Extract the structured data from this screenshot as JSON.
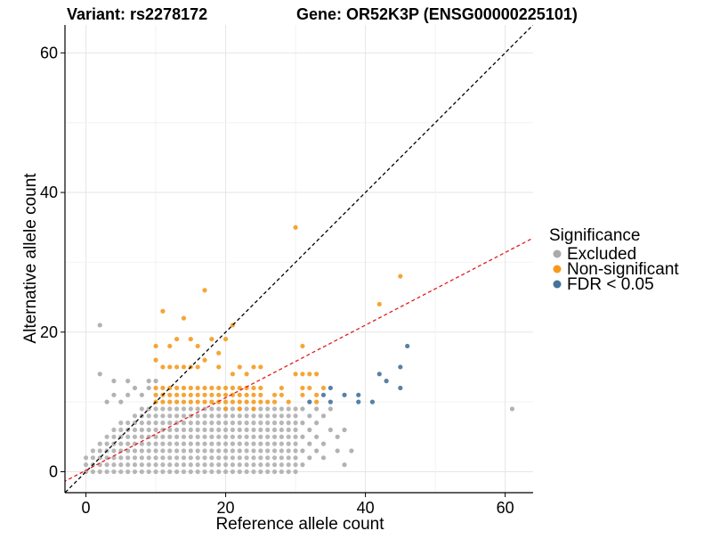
{
  "chart_data": {
    "type": "scatter",
    "title_left": "Variant: rs2278172",
    "title_right": "Gene: OR52K3P (ENSG00000225101)",
    "xlabel": "Reference allele count",
    "ylabel": "Alternative allele count",
    "xlim": [
      -3,
      64
    ],
    "ylim": [
      -3,
      64
    ],
    "x_ticks": [
      0,
      20,
      40,
      60
    ],
    "y_ticks": [
      0,
      20,
      40,
      60
    ],
    "grid": true,
    "legend_placement": "right",
    "legend": {
      "title": "Significance",
      "entries": [
        {
          "label": "Excluded",
          "color": "#aaaaaa"
        },
        {
          "label": "Non-significant",
          "color": "#f49b1f"
        },
        {
          "label": "FDR < 0.05",
          "color": "#44729c"
        }
      ]
    },
    "reference_lines": [
      {
        "name": "y = x",
        "slope": 1,
        "intercept": 0,
        "color": "#000000",
        "dash": "dashed"
      },
      {
        "name": "fit",
        "slope": 0.52,
        "intercept": 0.2,
        "color": "#e31a1c",
        "dash": "dashed"
      }
    ],
    "excluded_grid": {
      "x_max": 30,
      "y_max": 9
    },
    "series": [
      {
        "name": "Excluded",
        "color": "#aaaaaa",
        "points": [
          [
            2,
            21
          ],
          [
            2,
            14
          ],
          [
            4,
            13
          ],
          [
            6,
            13
          ],
          [
            7,
            12
          ],
          [
            9,
            13
          ],
          [
            9,
            12
          ],
          [
            10,
            13
          ],
          [
            8,
            11
          ],
          [
            6,
            11
          ],
          [
            5,
            10
          ],
          [
            3,
            10
          ],
          [
            4,
            11
          ],
          [
            31,
            9
          ],
          [
            33,
            9
          ],
          [
            35,
            9
          ],
          [
            32,
            8
          ],
          [
            34,
            8
          ],
          [
            31,
            7
          ],
          [
            33,
            7
          ],
          [
            32,
            6
          ],
          [
            35,
            6
          ],
          [
            31,
            5
          ],
          [
            33,
            5
          ],
          [
            36,
            5
          ],
          [
            37,
            6
          ],
          [
            32,
            4
          ],
          [
            34,
            4
          ],
          [
            31,
            3
          ],
          [
            33,
            3
          ],
          [
            36,
            3
          ],
          [
            32,
            2
          ],
          [
            34,
            2
          ],
          [
            38,
            3
          ],
          [
            37,
            1
          ],
          [
            31,
            1
          ],
          [
            61,
            9
          ]
        ]
      },
      {
        "name": "Non-significant",
        "color": "#f49b1f",
        "points": [
          [
            30,
            35
          ],
          [
            17,
            26
          ],
          [
            45,
            28
          ],
          [
            42,
            24
          ],
          [
            11,
            23
          ],
          [
            14,
            22
          ],
          [
            21,
            21
          ],
          [
            10,
            18
          ],
          [
            13,
            19
          ],
          [
            15,
            19
          ],
          [
            18,
            19
          ],
          [
            20,
            19
          ],
          [
            12,
            18
          ],
          [
            16,
            18
          ],
          [
            31,
            18
          ],
          [
            10,
            16
          ],
          [
            17,
            16
          ],
          [
            19,
            17
          ],
          [
            11,
            15
          ],
          [
            12,
            15
          ],
          [
            13,
            15
          ],
          [
            14,
            15
          ],
          [
            15,
            15
          ],
          [
            16,
            15
          ],
          [
            19,
            15
          ],
          [
            22,
            15
          ],
          [
            24,
            15
          ],
          [
            25,
            15
          ],
          [
            21,
            14
          ],
          [
            23,
            14
          ],
          [
            30,
            14
          ],
          [
            31,
            14
          ],
          [
            32,
            14
          ],
          [
            33,
            14
          ],
          [
            10,
            12
          ],
          [
            11,
            12
          ],
          [
            12,
            12
          ],
          [
            13,
            12
          ],
          [
            14,
            12
          ],
          [
            15,
            12
          ],
          [
            16,
            12
          ],
          [
            17,
            12
          ],
          [
            18,
            12
          ],
          [
            19,
            12
          ],
          [
            20,
            12
          ],
          [
            21,
            12
          ],
          [
            22,
            12
          ],
          [
            23,
            12
          ],
          [
            24,
            12
          ],
          [
            25,
            12
          ],
          [
            28,
            12
          ],
          [
            31,
            12
          ],
          [
            32,
            12
          ],
          [
            34,
            12
          ],
          [
            10,
            11
          ],
          [
            11,
            11
          ],
          [
            12,
            11
          ],
          [
            13,
            11
          ],
          [
            14,
            11
          ],
          [
            15,
            11
          ],
          [
            16,
            11
          ],
          [
            17,
            11
          ],
          [
            18,
            11
          ],
          [
            19,
            11
          ],
          [
            20,
            11
          ],
          [
            21,
            11
          ],
          [
            22,
            11
          ],
          [
            23,
            11
          ],
          [
            24,
            11
          ],
          [
            25,
            11
          ],
          [
            27,
            11
          ],
          [
            28,
            11
          ],
          [
            31,
            11
          ],
          [
            33,
            11
          ],
          [
            10,
            10
          ],
          [
            11,
            10
          ],
          [
            12,
            10
          ],
          [
            13,
            10
          ],
          [
            14,
            10
          ],
          [
            15,
            10
          ],
          [
            16,
            10
          ],
          [
            17,
            10
          ],
          [
            18,
            10
          ],
          [
            19,
            10
          ],
          [
            20,
            10
          ],
          [
            21,
            10
          ],
          [
            22,
            10
          ],
          [
            23,
            10
          ],
          [
            24,
            10
          ],
          [
            25,
            10
          ],
          [
            26,
            10
          ],
          [
            27,
            10
          ],
          [
            29,
            10
          ],
          [
            33,
            10
          ],
          [
            20,
            9
          ],
          [
            22,
            9
          ],
          [
            24,
            9
          ]
        ]
      },
      {
        "name": "FDR < 0.05",
        "color": "#44729c",
        "points": [
          [
            46,
            18
          ],
          [
            45,
            15
          ],
          [
            42,
            14
          ],
          [
            35,
            12
          ],
          [
            43,
            13
          ],
          [
            45,
            12
          ],
          [
            34,
            11
          ],
          [
            37,
            11
          ],
          [
            39,
            11
          ],
          [
            32,
            10
          ],
          [
            35,
            10
          ],
          [
            39,
            10
          ],
          [
            41,
            10
          ]
        ]
      }
    ]
  }
}
